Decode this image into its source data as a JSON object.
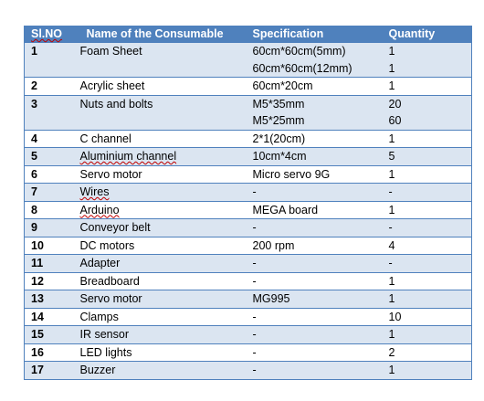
{
  "headers": [
    "Sl.NO",
    "Name of the Consumable",
    "Specification",
    "Quantity"
  ],
  "rows": [
    {
      "sl": "1",
      "name": "Foam Sheet",
      "spec": [
        "60cm*60cm(5mm)",
        "60cm*60cm(12mm)"
      ],
      "qty": [
        "1",
        "1"
      ]
    },
    {
      "sl": "2",
      "name": "Acrylic sheet",
      "spec": [
        "60cm*20cm"
      ],
      "qty": [
        "1"
      ]
    },
    {
      "sl": "3",
      "name": "Nuts and bolts",
      "spec": [
        "M5*35mm",
        "M5*25mm"
      ],
      "qty": [
        "20",
        "60"
      ]
    },
    {
      "sl": "4",
      "name": "C channel",
      "spec": [
        "2*1(20cm)"
      ],
      "qty": [
        "1"
      ]
    },
    {
      "sl": "5",
      "name": "Aluminium channel",
      "spec": [
        "10cm*4cm"
      ],
      "qty": [
        "5"
      ]
    },
    {
      "sl": "6",
      "name": "Servo motor",
      "spec": [
        "Micro servo 9G"
      ],
      "qty": [
        "1"
      ]
    },
    {
      "sl": "7",
      "name": "Wires",
      "spec": [
        "-"
      ],
      "qty": [
        "-"
      ]
    },
    {
      "sl": "8",
      "name": "Arduino",
      "spec": [
        "MEGA board"
      ],
      "qty": [
        "1"
      ]
    },
    {
      "sl": "9",
      "name": "Conveyor belt",
      "spec": [
        "-"
      ],
      "qty": [
        "-"
      ]
    },
    {
      "sl": "10",
      "name": "DC motors",
      "spec": [
        "200 rpm"
      ],
      "qty": [
        "4"
      ]
    },
    {
      "sl": "11",
      "name": "Adapter",
      "spec": [
        "-"
      ],
      "qty": [
        "-"
      ]
    },
    {
      "sl": "12",
      "name": "Breadboard",
      "spec": [
        "-"
      ],
      "qty": [
        "1"
      ]
    },
    {
      "sl": "13",
      "name": "Servo motor",
      "spec": [
        "MG995"
      ],
      "qty": [
        "1"
      ]
    },
    {
      "sl": "14",
      "name": "Clamps",
      "spec": [
        "-"
      ],
      "qty": [
        "10"
      ]
    },
    {
      "sl": "15",
      "name": "IR sensor",
      "spec": [
        "-"
      ],
      "qty": [
        "1"
      ]
    },
    {
      "sl": "16",
      "name": "LED lights",
      "spec": [
        "-"
      ],
      "qty": [
        "2"
      ]
    },
    {
      "sl": "17",
      "name": "Buzzer",
      "spec": [
        "-"
      ],
      "qty": [
        "1"
      ]
    }
  ],
  "style": {
    "header_color": "#4f81bd",
    "band_color": "#dbe5f1",
    "spellcheck_color": "#c00000"
  }
}
